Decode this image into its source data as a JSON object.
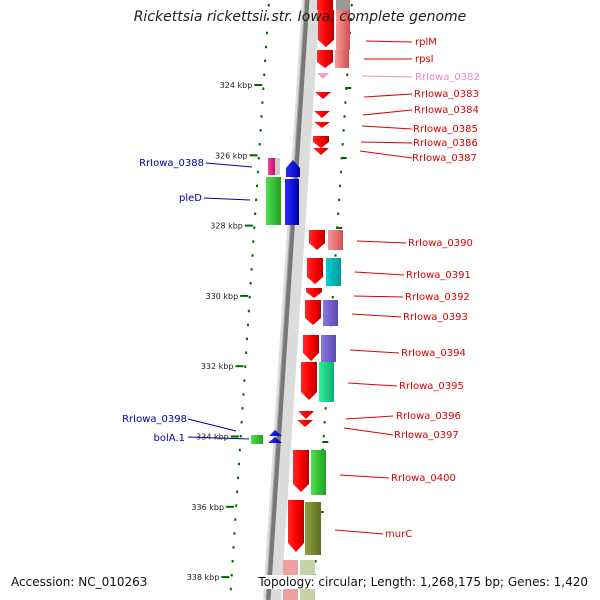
{
  "title": "Rickettsia rickettsii str. Iowa, complete genome",
  "footer": {
    "accession": "Accession: NC_010263",
    "topology": "Topology: circular; Length: 1,268,175 bp; Genes: 1,420"
  },
  "colors": {
    "backbone": "#777777",
    "forward_label": "#0000aa",
    "reverse_label": "#dd0000",
    "pseudogene_label": "#ee88bb",
    "tick": "#006600"
  },
  "kbp_ticks": [
    {
      "label": "324 kbp",
      "pos": 324
    },
    {
      "label": "326 kbp",
      "pos": 326
    },
    {
      "label": "328 kbp",
      "pos": 328
    },
    {
      "label": "330 kbp",
      "pos": 330
    },
    {
      "label": "332 kbp",
      "pos": 332
    },
    {
      "label": "334 kbp",
      "pos": 334
    },
    {
      "label": "336 kbp",
      "pos": 336
    },
    {
      "label": "338 kbp",
      "pos": 338
    }
  ],
  "genes_reverse": [
    {
      "name": "rplM",
      "center": 322.6
    },
    {
      "name": "rpsI",
      "center": 323.1
    },
    {
      "name": "RrIowa_0382",
      "center": 323.6,
      "pseudo": true
    },
    {
      "name": "RrIowa_0383",
      "center": 324.3
    },
    {
      "name": "RrIowa_0384",
      "center": 324.8
    },
    {
      "name": "RrIowa_0385",
      "center": 325.1
    },
    {
      "name": "RrIowa_0386",
      "center": 325.5
    },
    {
      "name": "RrIowa_0387",
      "center": 325.8
    },
    {
      "name": "RrIowa_0390",
      "center": 329.0
    },
    {
      "name": "RrIowa_0391",
      "center": 329.6
    },
    {
      "name": "RrIowa_0392",
      "center": 330.0
    },
    {
      "name": "RrIowa_0393",
      "center": 330.5
    },
    {
      "name": "RrIowa_0394",
      "center": 331.6
    },
    {
      "name": "RrIowa_0395",
      "center": 332.6
    },
    {
      "name": "RrIowa_0396",
      "center": 333.7
    },
    {
      "name": "RrIowa_0397",
      "center": 334.2
    },
    {
      "name": "RrIowa_0400",
      "center": 335.3
    },
    {
      "name": "murC",
      "center": 337.2
    }
  ],
  "genes_forward": [
    {
      "name": "RrIowa_0388",
      "center": 326.2
    },
    {
      "name": "pleD",
      "center": 327.2
    },
    {
      "name": "RrIowa_0398",
      "center": 334.0
    },
    {
      "name": "bolA.1",
      "center": 334.2
    }
  ]
}
